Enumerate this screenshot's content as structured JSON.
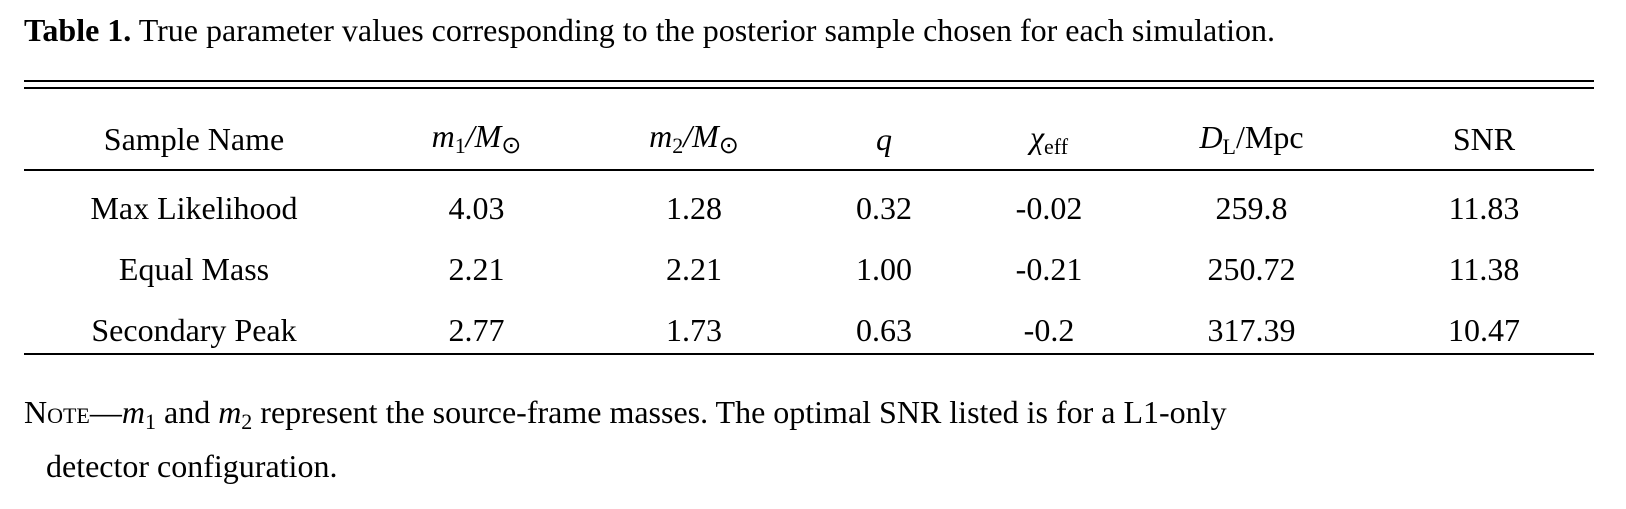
{
  "caption": {
    "label": "Table 1.",
    "text": "True parameter values corresponding to the posterior sample chosen for each simulation."
  },
  "table": {
    "headers": {
      "sample_name": "Sample Name",
      "m1": "m",
      "m1_sub": "1",
      "m1_unit": "/M",
      "m2": "m",
      "m2_sub": "2",
      "m2_unit": "/M",
      "sun_symbol": "⊙",
      "q": "q",
      "chi": "χ",
      "chi_sub": "eff",
      "dl": "D",
      "dl_sub": "L",
      "dl_unit": "/Mpc",
      "snr": "SNR"
    },
    "rows": [
      {
        "name": "Max Likelihood",
        "m1": "4.03",
        "m2": "1.28",
        "q": "0.32",
        "chi": "-0.02",
        "dl": "259.8",
        "snr": "11.83"
      },
      {
        "name": "Equal Mass",
        "m1": "2.21",
        "m2": "2.21",
        "q": "1.00",
        "chi": "-0.21",
        "dl": "250.72",
        "snr": "11.38"
      },
      {
        "name": "Secondary Peak",
        "m1": "2.77",
        "m2": "1.73",
        "q": "0.63",
        "chi": "-0.2",
        "dl": "317.39",
        "snr": "10.47"
      }
    ]
  },
  "note": {
    "prefix": "Note",
    "dash": "—",
    "m": "m",
    "sub1": "1",
    "and": " and ",
    "sub2": "2",
    "line1_rest": " represent the source-frame masses. The optimal SNR listed is for a L1-only",
    "line2": "detector configuration."
  }
}
